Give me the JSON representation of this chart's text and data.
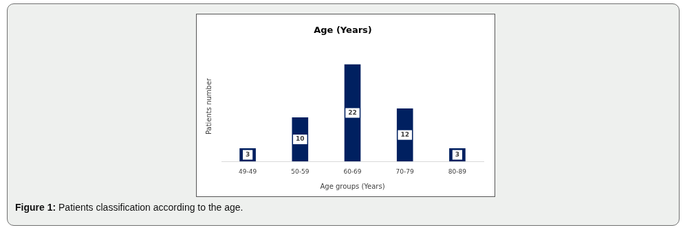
{
  "chart_data": {
    "type": "bar",
    "title": "Age (Years)",
    "xlabel": "Age groups (Years)",
    "ylabel": "Patients number",
    "categories": [
      "49-49",
      "50-59",
      "60-69",
      "70-79",
      "80-89"
    ],
    "values": [
      3,
      10,
      22,
      12,
      3
    ],
    "color": "#002060",
    "data_labels": true,
    "grid": false,
    "legend": false,
    "annotations": [
      "Figure 1: Patients classification according to the age."
    ]
  }
}
